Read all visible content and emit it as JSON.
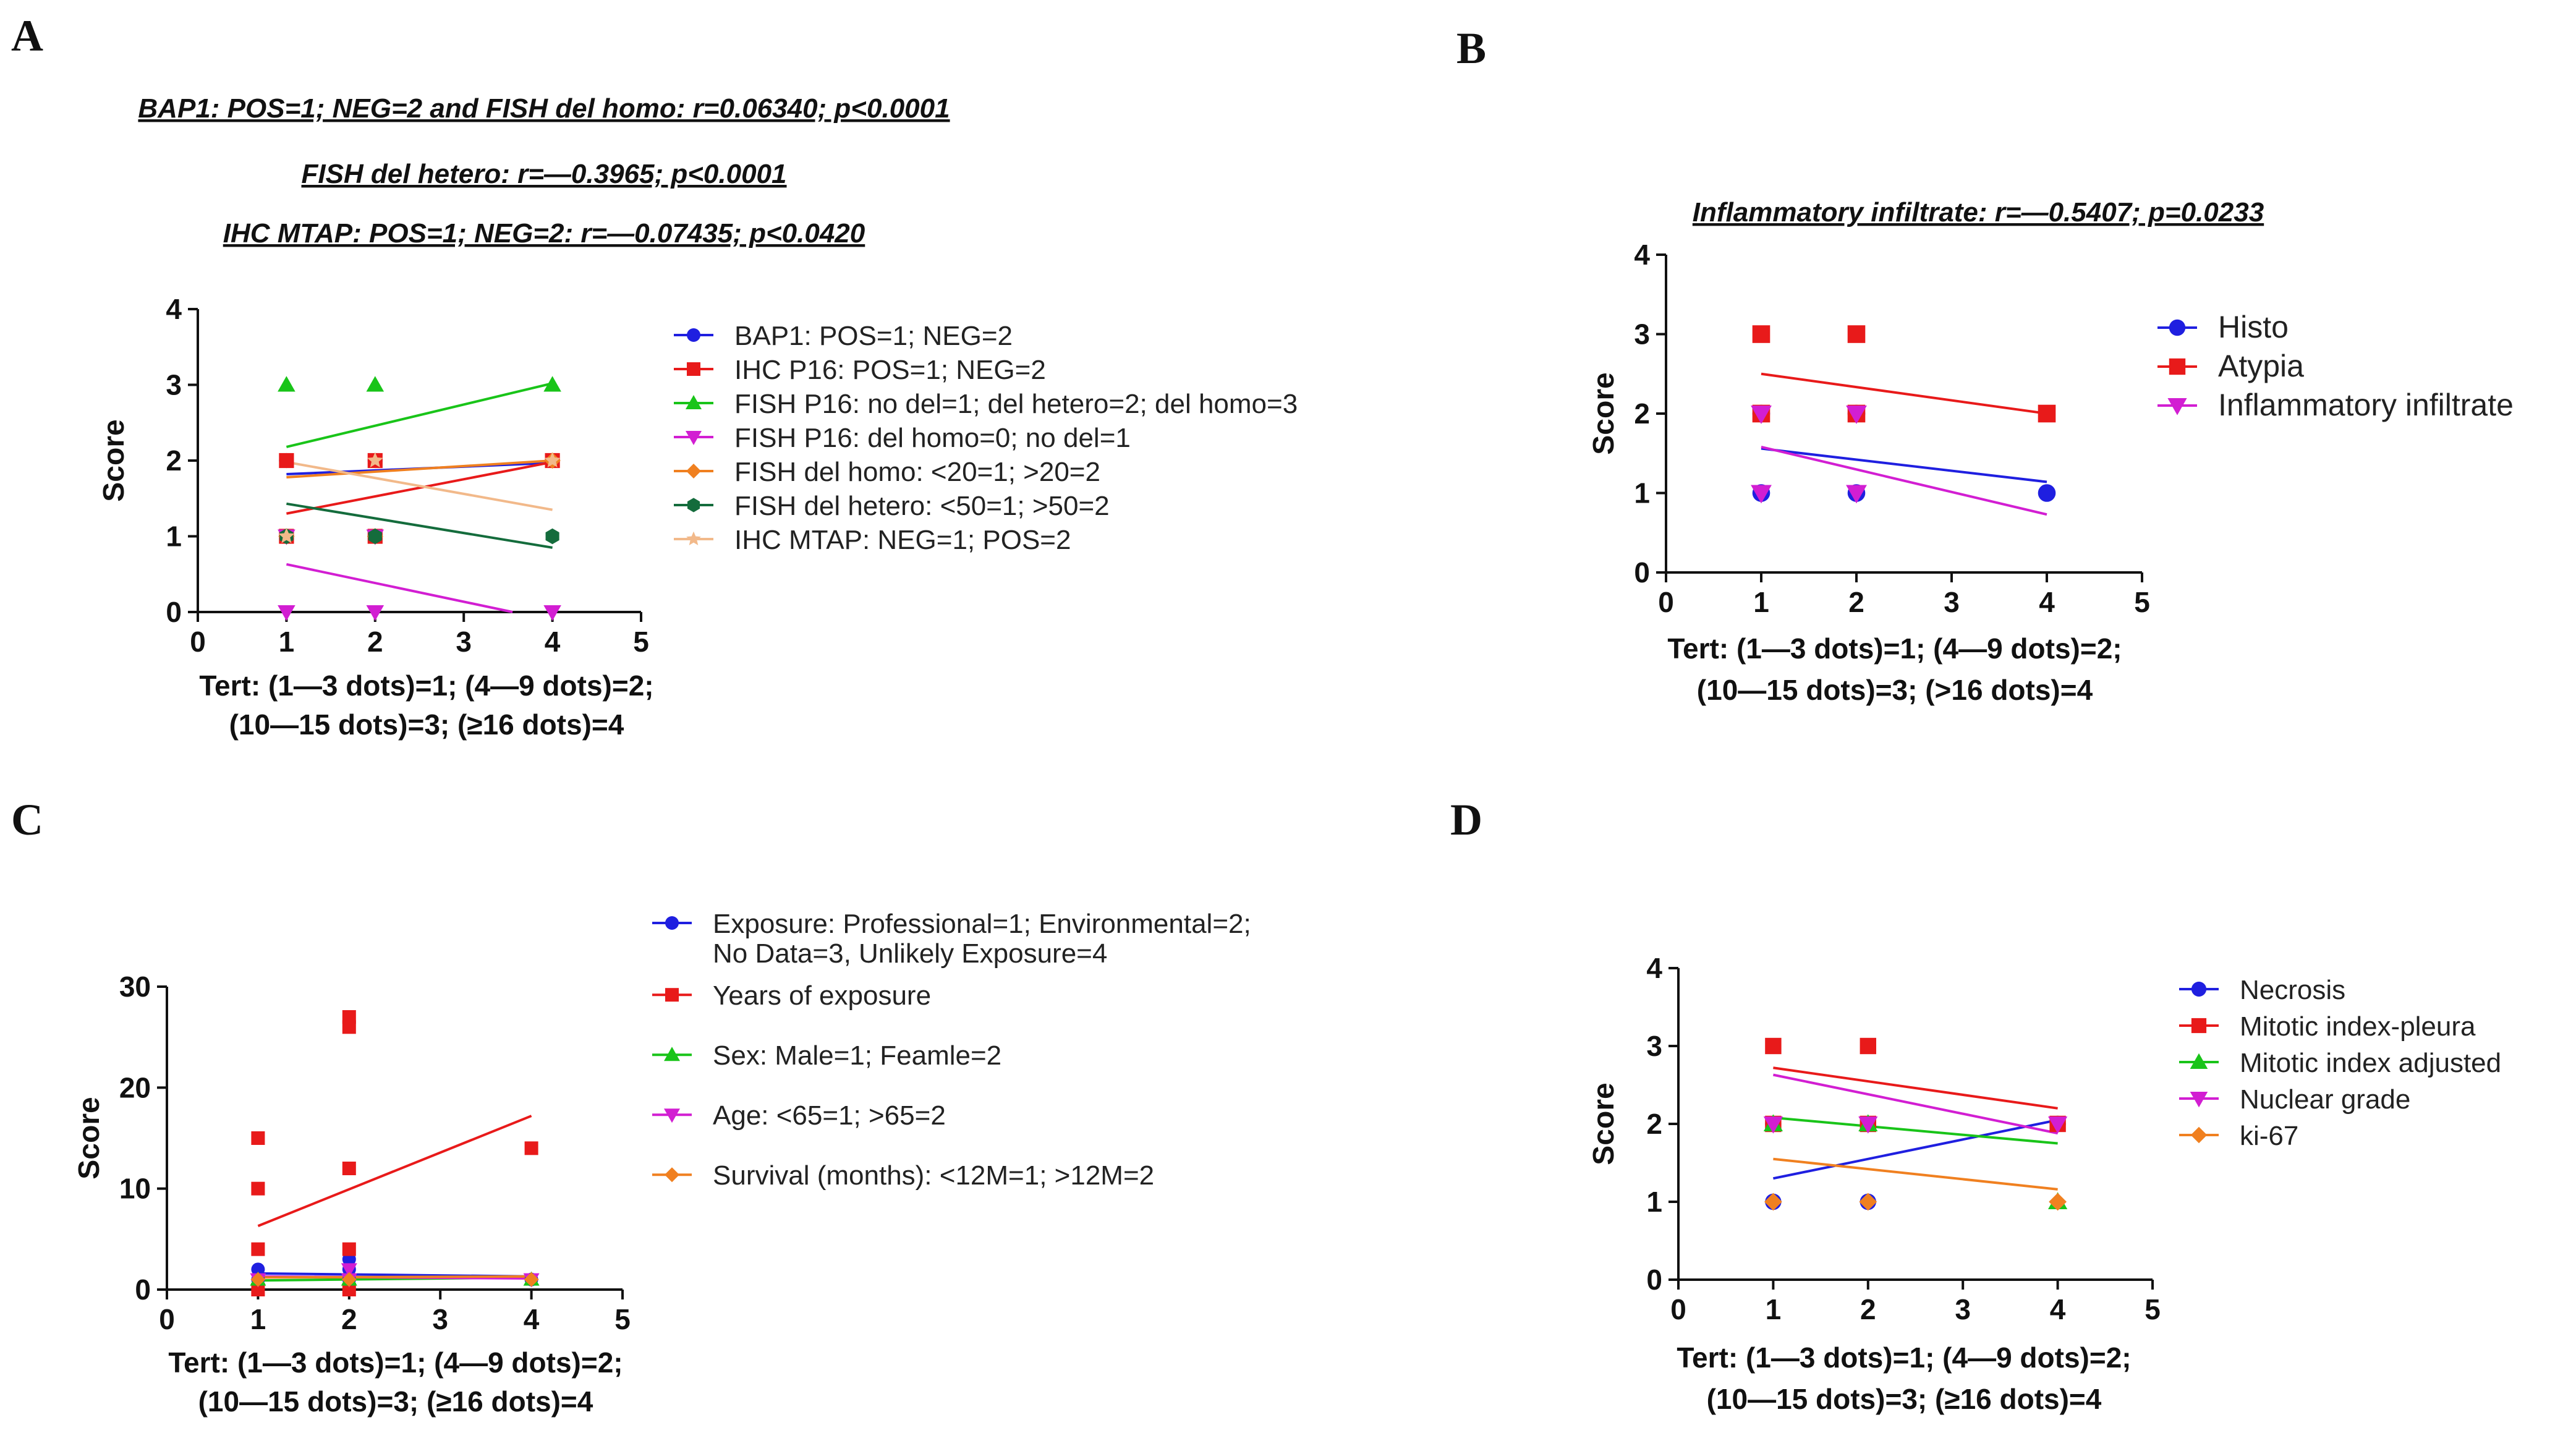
{
  "chart_data": [
    {
      "type": "scatter",
      "panel": "A",
      "annotations": [
        "BAP1: POS=1; NEG=2 and FISH del homo: r=0.06340; p<0.0001",
        "FISH del hetero: r=—0.3965; p<0.0001",
        "IHC MTAP: POS=1; NEG=2: r=—0.07435; p<0.0420"
      ],
      "ylabel": "Score",
      "xlabel": [
        "Tert: (1—3 dots)=1; (4—9 dots)=2;",
        "(10—15 dots)=3; (≥16 dots)=4"
      ],
      "xlim": [
        0,
        5
      ],
      "ylim": [
        0,
        4
      ],
      "xticks": [
        0,
        1,
        2,
        3,
        4,
        5
      ],
      "yticks": [
        0,
        1,
        2,
        3,
        4
      ],
      "series": [
        {
          "name": "BAP1: POS=1; NEG=2",
          "color": "#1f1fe0",
          "marker": "circle",
          "points": [
            [
              1,
              1
            ],
            [
              1,
              2
            ],
            [
              2,
              1
            ],
            [
              2,
              2
            ],
            [
              4,
              2
            ]
          ],
          "fit": [
            [
              1,
              1.82
            ],
            [
              4,
              1.97
            ]
          ]
        },
        {
          "name": "IHC P16: POS=1; NEG=2",
          "color": "#e81a1a",
          "marker": "square",
          "points": [
            [
              1,
              1
            ],
            [
              1,
              2
            ],
            [
              2,
              1
            ],
            [
              2,
              2
            ],
            [
              4,
              2
            ]
          ],
          "fit": [
            [
              1,
              1.3
            ],
            [
              4,
              1.98
            ]
          ]
        },
        {
          "name": "FISH P16: no del=1; del hetero=2; del homo=3",
          "color": "#19c419",
          "marker": "triangle",
          "points": [
            [
              1,
              3
            ],
            [
              2,
              3
            ],
            [
              4,
              3
            ]
          ],
          "fit": [
            [
              1,
              2.18
            ],
            [
              4,
              3.02
            ]
          ]
        },
        {
          "name": "FISH P16: del homo=0; no del=1",
          "color": "#d21ed2",
          "marker": "triangle-down",
          "points": [
            [
              1,
              0
            ],
            [
              2,
              0
            ],
            [
              4,
              0
            ],
            [
              1,
              1
            ],
            [
              2,
              1
            ]
          ],
          "fit": [
            [
              1,
              0.63
            ],
            [
              3.55,
              0
            ]
          ]
        },
        {
          "name": "FISH del homo: <20=1; >20=2",
          "color": "#f08020",
          "marker": "diamond",
          "points": [
            [
              1,
              1
            ],
            [
              2,
              1
            ],
            [
              4,
              2
            ]
          ],
          "fit": [
            [
              1,
              1.78
            ],
            [
              4,
              2.0
            ]
          ]
        },
        {
          "name": "FISH del hetero: <50=1; >50=2",
          "color": "#146c3c",
          "marker": "hexagon",
          "points": [
            [
              1,
              1
            ],
            [
              2,
              1
            ],
            [
              4,
              1
            ]
          ],
          "fit": [
            [
              1,
              1.43
            ],
            [
              4,
              0.85
            ]
          ]
        },
        {
          "name": "IHC MTAP: NEG=1; POS=2",
          "color": "#f2b98a",
          "marker": "star",
          "points": [
            [
              1,
              1
            ],
            [
              2,
              2
            ],
            [
              4,
              2
            ]
          ],
          "fit": [
            [
              1,
              1.98
            ],
            [
              4,
              1.35
            ]
          ]
        }
      ]
    },
    {
      "type": "scatter",
      "panel": "B",
      "annotations": [
        "Inflammatory infiltrate: r=—0.5407; p=0.0233"
      ],
      "ylabel": "Score",
      "xlabel": [
        "Tert: (1—3 dots)=1; (4—9 dots)=2;",
        "(10—15 dots)=3; (>16 dots)=4"
      ],
      "xlim": [
        0,
        5
      ],
      "ylim": [
        0,
        4
      ],
      "xticks": [
        0,
        1,
        2,
        3,
        4,
        5
      ],
      "yticks": [
        0,
        1,
        2,
        3,
        4
      ],
      "series": [
        {
          "name": "Histo",
          "color": "#1f1fe0",
          "marker": "circle",
          "points": [
            [
              1,
              1
            ],
            [
              1,
              2
            ],
            [
              2,
              1
            ],
            [
              2,
              2
            ],
            [
              4,
              1
            ]
          ],
          "fit": [
            [
              1,
              1.56
            ],
            [
              4,
              1.14
            ]
          ]
        },
        {
          "name": "Atypia",
          "color": "#e81a1a",
          "marker": "square",
          "points": [
            [
              1,
              3
            ],
            [
              1,
              2
            ],
            [
              2,
              3
            ],
            [
              2,
              2
            ],
            [
              4,
              2
            ]
          ],
          "fit": [
            [
              1,
              2.5
            ],
            [
              4,
              2.0
            ]
          ]
        },
        {
          "name": "Inflammatory infiltrate",
          "color": "#d21ed2",
          "marker": "triangle-down",
          "points": [
            [
              1,
              1
            ],
            [
              1,
              2
            ],
            [
              2,
              1
            ],
            [
              2,
              2
            ]
          ],
          "fit": [
            [
              1,
              1.58
            ],
            [
              4,
              0.73
            ]
          ]
        }
      ]
    },
    {
      "type": "scatter",
      "panel": "C",
      "ylabel": "Score",
      "xlabel": [
        "Tert: (1—3 dots)=1; (4—9 dots)=2;",
        "(10—15 dots)=3; (≥16 dots)=4"
      ],
      "xlim": [
        0,
        5
      ],
      "ylim": [
        0,
        30
      ],
      "xticks": [
        0,
        1,
        2,
        3,
        4,
        5
      ],
      "yticks": [
        0,
        10,
        20,
        30
      ],
      "series": [
        {
          "name": "Exposure: Professional=1; Environmental=2; No Data=3, Unlikely Exposure=4",
          "legend_lines": [
            "Exposure: Professional=1; Environmental=2;",
            "No Data=3, Unlikely Exposure=4"
          ],
          "color": "#1f1fe0",
          "marker": "circle",
          "points": [
            [
              1,
              1
            ],
            [
              1,
              2
            ],
            [
              2,
              1
            ],
            [
              2,
              2
            ],
            [
              2,
              3
            ],
            [
              4,
              1
            ]
          ],
          "fit": [
            [
              1,
              1.6
            ],
            [
              4,
              1.3
            ]
          ]
        },
        {
          "name": "Years of exposure",
          "color": "#e81a1a",
          "marker": "square",
          "points": [
            [
              1,
              15
            ],
            [
              1,
              10
            ],
            [
              1,
              4
            ],
            [
              1,
              0
            ],
            [
              2,
              27
            ],
            [
              2,
              26
            ],
            [
              2,
              12
            ],
            [
              2,
              4
            ],
            [
              2,
              0
            ],
            [
              4,
              14
            ]
          ],
          "fit": [
            [
              1,
              6.3
            ],
            [
              4,
              17.2
            ]
          ]
        },
        {
          "name": "Sex: Male=1; Feamle=2",
          "color": "#19c419",
          "marker": "triangle",
          "points": [
            [
              1,
              1
            ],
            [
              2,
              1
            ],
            [
              4,
              1
            ]
          ],
          "fit": [
            [
              1,
              0.9
            ],
            [
              4,
              1.2
            ]
          ]
        },
        {
          "name": "Age: <65=1; >65=2",
          "color": "#d21ed2",
          "marker": "triangle-down",
          "points": [
            [
              1,
              1
            ],
            [
              2,
              1
            ],
            [
              2,
              2
            ],
            [
              4,
              1
            ]
          ],
          "fit": [
            [
              1,
              1.3
            ],
            [
              4,
              1.1
            ]
          ]
        },
        {
          "name": "Survival (months): <12M=1; >12M=2",
          "color": "#f08020",
          "marker": "diamond",
          "points": [
            [
              1,
              1
            ],
            [
              2,
              1
            ],
            [
              4,
              1
            ]
          ],
          "fit": [
            [
              1,
              1.2
            ],
            [
              4,
              1.3
            ]
          ]
        }
      ]
    },
    {
      "type": "scatter",
      "panel": "D",
      "ylabel": "Score",
      "xlabel": [
        "Tert: (1—3 dots)=1; (4—9 dots)=2;",
        "(10—15 dots)=3; (≥16 dots)=4"
      ],
      "xlim": [
        0,
        5
      ],
      "ylim": [
        0,
        4
      ],
      "xticks": [
        0,
        1,
        2,
        3,
        4,
        5
      ],
      "yticks": [
        0,
        1,
        2,
        3,
        4
      ],
      "series": [
        {
          "name": "Necrosis",
          "color": "#1f1fe0",
          "marker": "circle",
          "points": [
            [
              1,
              1
            ],
            [
              1,
              2
            ],
            [
              2,
              1
            ],
            [
              2,
              2
            ],
            [
              4,
              2
            ]
          ],
          "fit": [
            [
              1,
              1.3
            ],
            [
              4,
              2.05
            ]
          ]
        },
        {
          "name": "Mitotic index-pleura",
          "color": "#e81a1a",
          "marker": "square",
          "points": [
            [
              1,
              3
            ],
            [
              1,
              2
            ],
            [
              2,
              3
            ],
            [
              2,
              2
            ],
            [
              4,
              2
            ]
          ],
          "fit": [
            [
              1,
              2.72
            ],
            [
              4,
              2.2
            ]
          ]
        },
        {
          "name": "Mitotic index adjusted",
          "color": "#19c419",
          "marker": "triangle",
          "points": [
            [
              1,
              2
            ],
            [
              2,
              2
            ],
            [
              4,
              1
            ]
          ],
          "fit": [
            [
              1,
              2.08
            ],
            [
              4,
              1.75
            ]
          ]
        },
        {
          "name": "Nuclear grade",
          "color": "#d21ed2",
          "marker": "triangle-down",
          "points": [
            [
              1,
              2
            ],
            [
              2,
              2
            ],
            [
              4,
              2
            ]
          ],
          "fit": [
            [
              1,
              2.63
            ],
            [
              4,
              1.88
            ]
          ]
        },
        {
          "name": "ki-67",
          "color": "#f08020",
          "marker": "diamond",
          "points": [
            [
              1,
              1
            ],
            [
              2,
              1
            ],
            [
              4,
              1
            ]
          ],
          "fit": [
            [
              1,
              1.55
            ],
            [
              4,
              1.16
            ]
          ]
        }
      ]
    }
  ]
}
